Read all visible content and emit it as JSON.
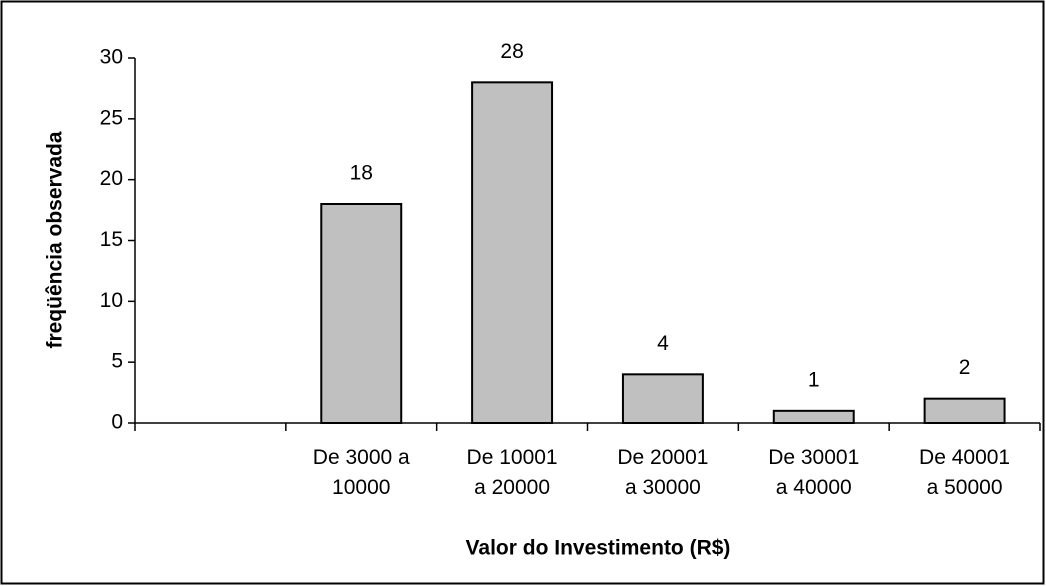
{
  "chart_data": {
    "type": "bar",
    "y_label": "freqüência observada",
    "x_label": "Valor do Investimento (R$)",
    "categories": [
      null,
      "De 3000 a 10000",
      "De 10001 a 20000",
      "De 20001 a 30000",
      "De 30001 a 40000",
      "De 40001 a 50000"
    ],
    "values": [
      null,
      18,
      28,
      4,
      1,
      2
    ],
    "color": "#c0c0c0",
    "ylim": [
      0,
      30
    ],
    "yticks": [
      0,
      5,
      10,
      15,
      20,
      25,
      30
    ],
    "grid": false
  }
}
